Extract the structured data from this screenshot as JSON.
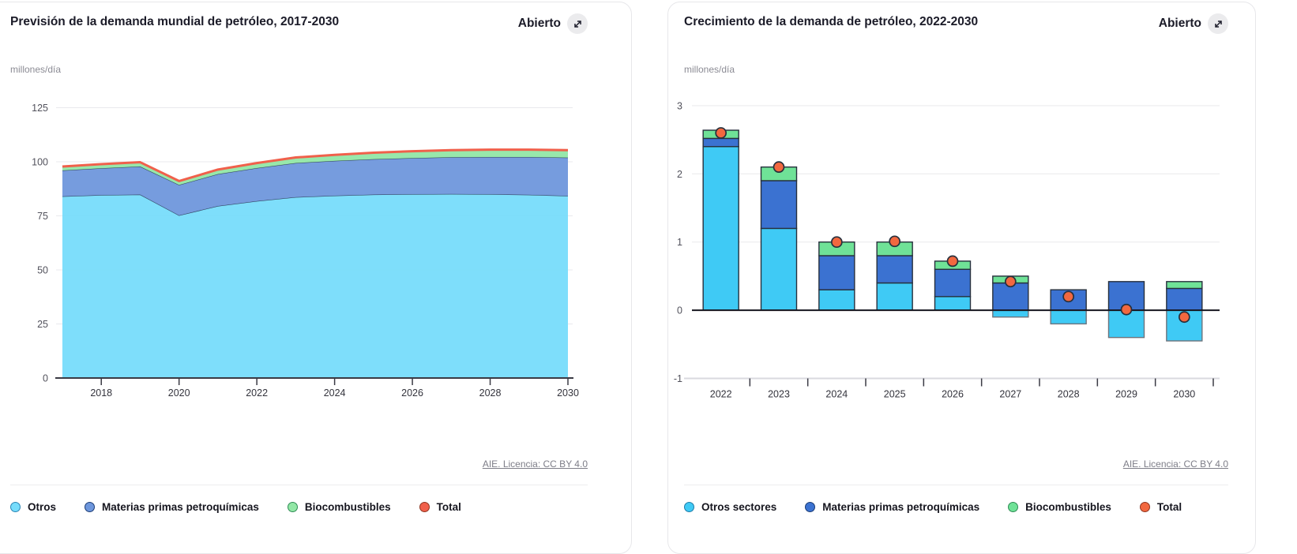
{
  "cards": [
    {
      "title": "Previsión de la demanda mundial de petróleo, 2017-2030",
      "open_label": "Abierto",
      "unit": "millones/día",
      "attribution": "AIE. Licencia: CC BY 4.0"
    },
    {
      "title": "Crecimiento de la demanda de petróleo, 2022-2030",
      "open_label": "Abierto",
      "unit": "millones/día",
      "attribution": "AIE. Licencia: CC BY 4.0"
    }
  ],
  "chart_data": [
    {
      "type": "area",
      "title": "Previsión de la demanda mundial de petróleo, 2017-2030",
      "ylabel": "millones/día",
      "x": [
        2017,
        2018,
        2019,
        2020,
        2021,
        2022,
        2023,
        2024,
        2025,
        2026,
        2027,
        2028,
        2029,
        2030
      ],
      "series": [
        {
          "name": "Otros",
          "kind": "area",
          "color": "#76DCFB",
          "border": "#2a85b5",
          "values": [
            84.0,
            84.6,
            84.8,
            75.2,
            79.5,
            81.8,
            83.6,
            84.3,
            84.8,
            85.0,
            85.1,
            85.0,
            84.7,
            84.2
          ]
        },
        {
          "name": "Materias primas petroquímicas",
          "kind": "area",
          "color": "#6D96DC",
          "border": "#1d3d75",
          "values": [
            12.0,
            12.4,
            13.0,
            14.1,
            14.8,
            15.3,
            15.8,
            16.1,
            16.4,
            16.7,
            17.0,
            17.2,
            17.5,
            17.7
          ]
        },
        {
          "name": "Biocombustibles",
          "kind": "area",
          "color": "#92E7A6",
          "border": "#2f8c55",
          "values": [
            1.8,
            1.9,
            2.0,
            1.8,
            2.1,
            2.3,
            2.6,
            2.8,
            3.0,
            3.2,
            3.3,
            3.4,
            3.4,
            3.5
          ]
        },
        {
          "name": "Total",
          "kind": "line",
          "color": "#F0604B",
          "border": "#8f3520",
          "values": [
            97.8,
            98.9,
            99.8,
            91.1,
            96.4,
            99.4,
            102.0,
            103.2,
            104.2,
            104.9,
            105.4,
            105.6,
            105.6,
            105.4
          ]
        }
      ],
      "ylim": [
        0,
        125
      ],
      "yticks": [
        0,
        25,
        50,
        75,
        100,
        125
      ],
      "xticks": [
        2018,
        2020,
        2022,
        2024,
        2026,
        2028,
        2030
      ],
      "grid": true,
      "legend_position": "bottom"
    },
    {
      "type": "bar",
      "title": "Crecimiento de la demanda de petróleo, 2022-2030",
      "ylabel": "millones/día",
      "categories": [
        2022,
        2023,
        2024,
        2025,
        2026,
        2027,
        2028,
        2029,
        2030
      ],
      "series": [
        {
          "name": "Otros sectores",
          "kind": "bar",
          "color": "#3FCAF5",
          "border": "#1f7ca8",
          "values": [
            2.4,
            1.2,
            0.3,
            0.4,
            0.2,
            -0.1,
            -0.2,
            -0.4,
            -0.45
          ]
        },
        {
          "name": "Materias primas petroquímicas",
          "kind": "bar",
          "color": "#3B72D1",
          "border": "#1d3d75",
          "values": [
            0.12,
            0.7,
            0.5,
            0.4,
            0.4,
            0.4,
            0.3,
            0.42,
            0.32
          ]
        },
        {
          "name": "Biocombustibles",
          "kind": "bar",
          "color": "#6FE297",
          "border": "#2f8c55",
          "values": [
            0.12,
            0.2,
            0.2,
            0.2,
            0.12,
            0.1,
            0,
            0,
            0.1
          ]
        },
        {
          "name": "Total",
          "kind": "scatter",
          "color": "#F2683F",
          "border": "#8f3520",
          "values": [
            2.6,
            2.1,
            1.0,
            1.01,
            0.72,
            0.42,
            0.2,
            0.01,
            -0.1
          ]
        }
      ],
      "ylim": [
        -1,
        3
      ],
      "yticks": [
        -1,
        0,
        1,
        2,
        3
      ],
      "grid": true,
      "legend_position": "bottom"
    }
  ]
}
